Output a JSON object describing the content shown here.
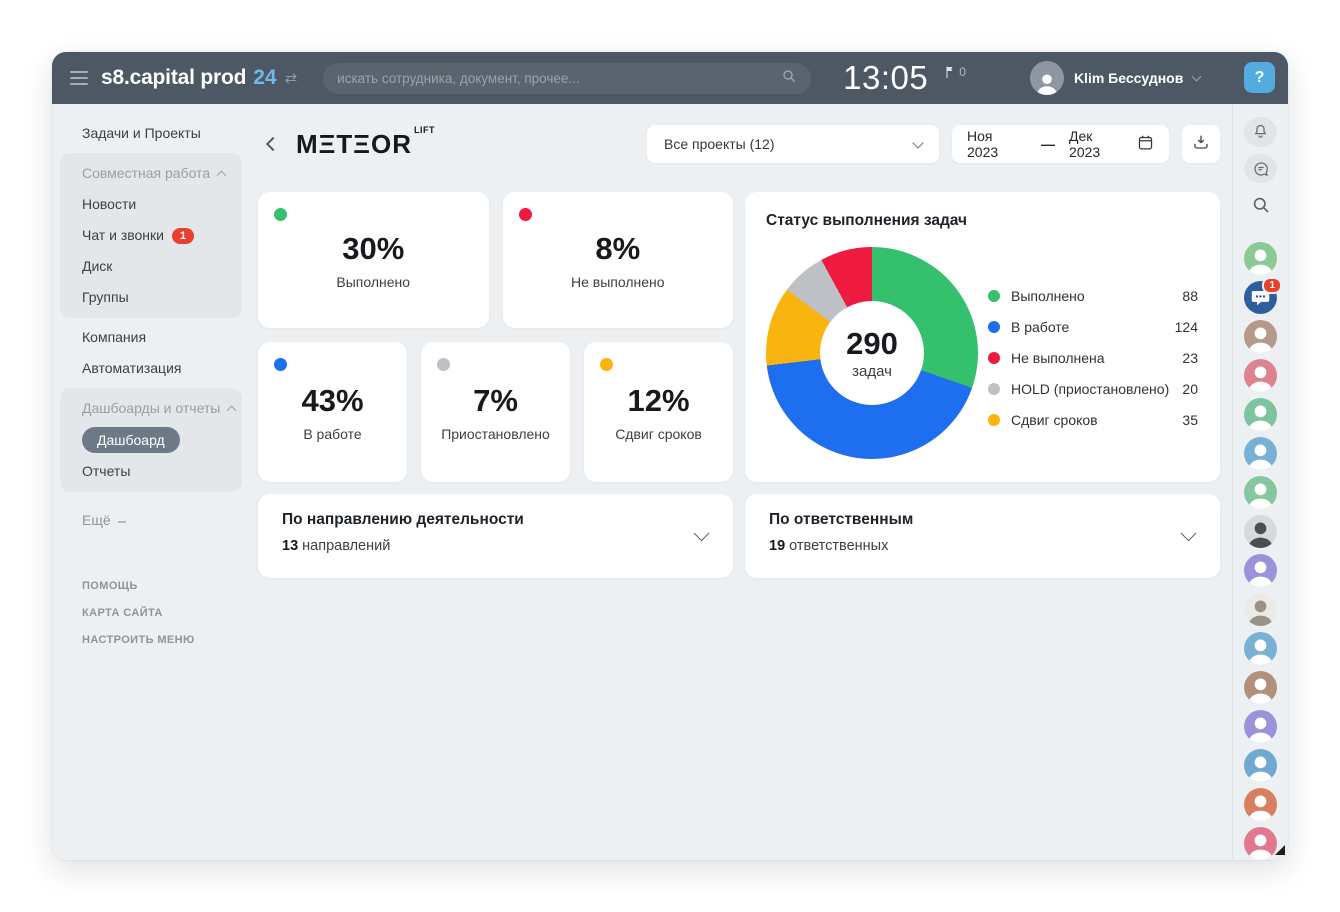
{
  "topbar": {
    "brand": "s8.capital prod",
    "brand_suffix": "24",
    "search_placeholder": "искать сотрудника, документ, прочее...",
    "clock": "13:05",
    "flag_count": "0",
    "user_name": "Klim Бессуднов",
    "help_label": "?"
  },
  "sidebar": {
    "primary": "Задачи и Проекты",
    "group_collab": {
      "header": "Совместная работа",
      "items": [
        {
          "label": "Новости"
        },
        {
          "label": "Чат и звонки",
          "badge": "1"
        },
        {
          "label": "Диск"
        },
        {
          "label": "Группы"
        }
      ]
    },
    "middle_items": [
      "Компания",
      "Автоматизация"
    ],
    "group_dash": {
      "header": "Дашбоарды и отчеты",
      "active_item": "Дашбоард",
      "item": "Отчеты"
    },
    "more_label": "Ещё",
    "footer_links": [
      "ПОМОЩЬ",
      "КАРТА САЙТА",
      "НАСТРОИТЬ МЕНЮ"
    ]
  },
  "main": {
    "logo_text": "MΞTΞOR",
    "logo_sup": "LIFT",
    "project_filter": "Все проекты (12)",
    "date_from": "Ноя 2023",
    "date_separator": "—",
    "date_to": "Дек 2023",
    "stat_cards": [
      {
        "percent": "30%",
        "label": "Выполнено",
        "color": "#35c06d"
      },
      {
        "percent": "8%",
        "label": "Не выполнено",
        "color": "#ef1a40"
      },
      {
        "percent": "43%",
        "label": "В работе",
        "color": "#1d6ff0"
      },
      {
        "percent": "7%",
        "label": "Приостановлено",
        "color": "#bdc1c6"
      },
      {
        "percent": "12%",
        "label": "Сдвиг сроков",
        "color": "#f9b410"
      }
    ],
    "expanders": [
      {
        "title": "По направлению деятельности",
        "count": "13",
        "suffix": "направлений"
      },
      {
        "title": "По ответственным",
        "count": "19",
        "suffix": "ответственных"
      }
    ]
  },
  "chart_data": {
    "type": "pie",
    "variant": "donut",
    "title": "Статус выполнения задач",
    "center_value": "290",
    "center_label": "задач",
    "total": 290,
    "segments": [
      {
        "label": "Выполнено",
        "value": 88,
        "color": "#35c06d"
      },
      {
        "label": "В работе",
        "value": 124,
        "color": "#1d6ff0"
      },
      {
        "label": "Не выполнена",
        "value": 23,
        "color": "#ef1a40"
      },
      {
        "label": "HOLD (приостановлено)",
        "value": 20,
        "color": "#bdc1c6"
      },
      {
        "label": "Сдвиг сроков",
        "value": 35,
        "color": "#f9b410"
      }
    ],
    "donut_clockwise_order": [
      0,
      1,
      4,
      3,
      2
    ],
    "legend_position": "right"
  },
  "rail": {
    "icons": [
      "bell",
      "messenger",
      "search"
    ],
    "avatars": [
      {
        "kind": "person",
        "bg": "#8bc995"
      },
      {
        "kind": "chat",
        "bg": "#2d5f9c",
        "badge": "1"
      },
      {
        "kind": "person",
        "bg": "#b59a8b"
      },
      {
        "kind": "person",
        "bg": "#dd8390"
      },
      {
        "kind": "person",
        "bg": "#7fc4a0"
      },
      {
        "kind": "person",
        "bg": "#78b1d4"
      },
      {
        "kind": "person",
        "bg": "#85c79f"
      },
      {
        "kind": "photo",
        "bg": "#d7d9db",
        "fg": "#4a4f55"
      },
      {
        "kind": "person",
        "bg": "#9b92da"
      },
      {
        "kind": "photo",
        "bg": "#eceae6",
        "fg": "#9a9288"
      },
      {
        "kind": "person",
        "bg": "#78b1d4"
      },
      {
        "kind": "person",
        "bg": "#b1907c"
      },
      {
        "kind": "person",
        "bg": "#9b92da"
      },
      {
        "kind": "person",
        "bg": "#6fa9cf"
      },
      {
        "kind": "person",
        "bg": "#d87f62"
      },
      {
        "kind": "person",
        "bg": "#e2788f"
      }
    ]
  }
}
